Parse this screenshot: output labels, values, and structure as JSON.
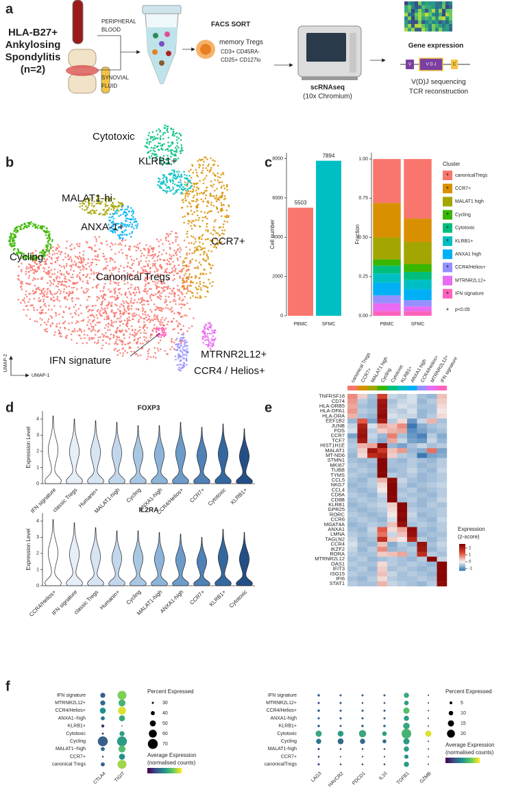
{
  "panels": [
    "a",
    "b",
    "c",
    "d",
    "e",
    "f"
  ],
  "workflow": {
    "cohort": [
      "HLA-B27+",
      "Ankylosing",
      "Spondylitis",
      "(n=2)"
    ],
    "blood": [
      "PERIPHERAL",
      "BLOOD"
    ],
    "fluid": [
      "SYNOVIAL",
      "FLUID"
    ],
    "sort": "FACS SORT",
    "population": "memory Tregs",
    "markers": [
      "CD3+ CD45RA-",
      "CD25+ CD127lo"
    ],
    "method": "scRNAseq",
    "platform": "(10x Chromium)",
    "expression": "Gene expression",
    "vdj": [
      "V(D)J sequencing",
      "TCR reconstruction"
    ],
    "segments": [
      "V",
      "V D J",
      "C"
    ]
  },
  "umap": {
    "xlabel": "UMAP-1",
    "ylabel": "UMAP-2",
    "clusters": [
      {
        "label": "Canonical Tregs",
        "color": "#F8766D"
      },
      {
        "label": "CCR7+",
        "color": "#D89000"
      },
      {
        "label": "MALAT1-hi",
        "color": "#A3A500"
      },
      {
        "label": "Cycling",
        "color": "#39B600"
      },
      {
        "label": "Cytotoxic",
        "color": "#00BF7D"
      },
      {
        "label": "KLRB1+",
        "color": "#00BFC4"
      },
      {
        "label": "ANXA-1+",
        "color": "#00B0F6"
      },
      {
        "label": "CCR4 / Helios+",
        "color": "#9590FF"
      },
      {
        "label": "MTRNR2L12+",
        "color": "#E76BF3"
      },
      {
        "label": "IFN signature",
        "color": "#FF62BC"
      }
    ]
  },
  "chart_data": [
    {
      "type": "bar",
      "ylabel": "Cell number",
      "categories": [
        "PBMC",
        "SFMC"
      ],
      "values": [
        5503,
        7894
      ],
      "colors": [
        "#F8766D",
        "#00BFC4"
      ],
      "ylim": [
        0,
        8300
      ],
      "yticks": [
        0,
        2000,
        4000,
        6000,
        8000
      ]
    },
    {
      "type": "stacked_bar",
      "ylabel": "Fraction",
      "categories": [
        "PBMC",
        "SFMC"
      ],
      "ylim": [
        0,
        1.04
      ],
      "yticks": [
        {
          "value": 0,
          "label": "0.00"
        },
        {
          "value": 0.25,
          "label": "0.25"
        },
        {
          "value": 0.5,
          "label": "0.50"
        },
        {
          "value": 0.75,
          "label": "0.75"
        },
        {
          "value": 1,
          "label": "1.00"
        }
      ],
      "legend_title": "Cluster",
      "significance_mark": "*",
      "significance_note": "p<0.05",
      "series": [
        {
          "name": "canonicalTregs",
          "color": "#F8766D",
          "values": [
            0.28,
            0.38
          ],
          "significant": true
        },
        {
          "name": "CCR7+",
          "color": "#D89000",
          "values": [
            0.22,
            0.15
          ],
          "significant": true
        },
        {
          "name": "MALAT1 high",
          "color": "#A3A500",
          "values": [
            0.14,
            0.14
          ],
          "significant": false
        },
        {
          "name": "Cycling",
          "color": "#39B600",
          "values": [
            0.04,
            0.05
          ],
          "significant": true
        },
        {
          "name": "Cytotoxic",
          "color": "#00BF7D",
          "values": [
            0.05,
            0.05
          ],
          "significant": true
        },
        {
          "name": "KLRB1+",
          "color": "#00BFC4",
          "values": [
            0.06,
            0.06
          ],
          "significant": true
        },
        {
          "name": "ANXA1 high",
          "color": "#00B0F6",
          "values": [
            0.08,
            0.07
          ],
          "significant": false
        },
        {
          "name": "CCR4/Helios+",
          "color": "#9590FF",
          "values": [
            0.05,
            0.04
          ],
          "significant": true
        },
        {
          "name": "MTRNR2L12+",
          "color": "#E76BF3",
          "values": [
            0.05,
            0.03
          ],
          "significant": false
        },
        {
          "name": "IFN signature",
          "color": "#FF62BC",
          "values": [
            0.03,
            0.03
          ],
          "significant": true
        }
      ]
    },
    {
      "type": "violin",
      "title": "FOXP3",
      "ylabel": "Expression Level",
      "ylim": [
        0,
        4.5
      ],
      "yticks": [
        0,
        1,
        2,
        3,
        4
      ],
      "categories": [
        "IFN signature",
        "classic Tregs",
        "Humanin+",
        "MALAT1-high",
        "Cycling",
        "ANXA1-high",
        "CCR4/Helios+",
        "CCR7+",
        "Cytotoxic",
        "KLRB1+"
      ],
      "values": [
        4.2,
        4.0,
        3.9,
        3.8,
        3.6,
        3.6,
        3.8,
        3.5,
        3.7,
        3.4
      ],
      "colors": [
        "#ffffff",
        "#e6eef8",
        "#d6e4f3",
        "#c3d7ec",
        "#a9c7e3",
        "#8db4d8",
        "#6c9bc9",
        "#4f80b6",
        "#35679f",
        "#244f86"
      ]
    },
    {
      "type": "violin",
      "title": "IL2RA",
      "ylabel": "Expression Level",
      "ylim": [
        0,
        4.5
      ],
      "yticks": [
        0,
        1,
        2,
        3,
        4
      ],
      "categories": [
        "CCR4/Helios+",
        "IFN signature",
        "classic Tregs",
        "Humanin+",
        "Cycling",
        "MALAT1-high",
        "ANXA1-high",
        "CCR7+",
        "KLRB1+",
        "Cytotoxic"
      ],
      "values": [
        4.1,
        3.9,
        3.6,
        3.4,
        3.4,
        3.3,
        3.2,
        3.0,
        3.5,
        3.3
      ],
      "colors": [
        "#ffffff",
        "#e6eef8",
        "#d6e4f3",
        "#c3d7ec",
        "#a9c7e3",
        "#8db4d8",
        "#6c9bc9",
        "#4f80b6",
        "#35679f",
        "#244f86"
      ]
    },
    {
      "type": "heatmap",
      "columns": [
        "canonical Tregs",
        "CCR7+",
        "MALAT1 high",
        "Cycling",
        "Cytotoxic",
        "KLRB1+",
        "ANXA1 high",
        "CCR4/Helios+",
        "MTRNR2L12+",
        "IFN signature"
      ],
      "column_colors": [
        "#F8766D",
        "#D89000",
        "#A3A500",
        "#39B600",
        "#00BF7D",
        "#00BFC4",
        "#00B0F6",
        "#9590FF",
        "#E76BF3",
        "#FF62BC"
      ],
      "rows": [
        "TNFRSF18",
        "CD74",
        "HLA-DRB5",
        "HLA-DPA1",
        "HLA-DRA",
        "EEF1B2",
        "JUNB",
        "FOS",
        "CCR7",
        "TCF7",
        "HIST1H1E",
        "MALAT1",
        "MT-ND6",
        "STMN1",
        "MKI67",
        "TUBB",
        "TYMS",
        "CCL5",
        "NKG7",
        "CCL4",
        "CD8A",
        "CD8B",
        "KLRB1",
        "GPR25",
        "RORC",
        "CCR6",
        "MGAT4A",
        "ANXA1",
        "LMNA",
        "TAGLN2",
        "CCR4",
        "IKZF2",
        "RORA",
        "MTRNR2L12",
        "OAS1",
        "IFIT3",
        "ISG15",
        "IFI6",
        "STAT1"
      ],
      "values": [
        [
          0.8,
          0.3,
          -0.5,
          1.5,
          -0.3,
          -0.4,
          -0.2,
          -0.5,
          -0.6,
          0.4
        ],
        [
          0.7,
          -0.4,
          -0.6,
          2.2,
          -0.5,
          -0.3,
          -0.2,
          -0.6,
          -0.4,
          0.3
        ],
        [
          0.6,
          -0.5,
          -0.6,
          2.3,
          -0.4,
          -0.2,
          -0.3,
          -0.5,
          -0.5,
          0.2
        ],
        [
          0.7,
          -0.4,
          -0.5,
          2.3,
          -0.3,
          -0.4,
          -0.2,
          -0.6,
          -0.5,
          0.1
        ],
        [
          0.5,
          -0.5,
          -0.6,
          2.4,
          -0.2,
          -0.3,
          -0.3,
          -0.6,
          -0.4,
          0.2
        ],
        [
          -0.6,
          1.2,
          -0.8,
          2.1,
          -0.4,
          0.2,
          -0.9,
          -0.3,
          0.5,
          -0.5
        ],
        [
          -0.3,
          2.0,
          -0.2,
          0.6,
          0.4,
          0.8,
          -1.2,
          -0.7,
          -0.5,
          -0.4
        ],
        [
          -0.2,
          2.2,
          -0.4,
          0.3,
          0.5,
          0.6,
          -1.0,
          -0.8,
          -0.6,
          -0.5
        ],
        [
          -0.8,
          2.3,
          -0.3,
          -0.6,
          0.9,
          -0.5,
          -0.9,
          -1.1,
          -0.4,
          -0.7
        ],
        [
          -0.5,
          2.1,
          -0.4,
          -0.7,
          0.6,
          -0.3,
          -0.8,
          -0.9,
          -0.3,
          -0.6
        ],
        [
          -0.4,
          0.5,
          0.6,
          2.4,
          -0.6,
          -0.8,
          -0.5,
          -0.3,
          -0.5,
          -0.4
        ],
        [
          -0.5,
          0.3,
          2.2,
          1.6,
          0.4,
          0.7,
          -0.6,
          -0.7,
          1.0,
          -0.8
        ],
        [
          -0.6,
          0.2,
          1.8,
          2.0,
          0.3,
          -0.4,
          -0.5,
          -1.2,
          -0.8,
          -0.7
        ],
        [
          -0.5,
          -0.6,
          -0.5,
          2.5,
          -0.5,
          -0.6,
          -0.4,
          -0.5,
          -0.6,
          -0.4
        ],
        [
          -0.4,
          -0.5,
          -0.6,
          2.5,
          -0.5,
          -0.5,
          -0.4,
          -0.6,
          -0.5,
          -0.4
        ],
        [
          -0.5,
          -0.4,
          -0.5,
          2.5,
          -0.6,
          -0.5,
          -0.3,
          -0.5,
          -0.6,
          -0.3
        ],
        [
          -0.4,
          -0.5,
          -0.6,
          2.5,
          -0.4,
          -0.5,
          -0.4,
          -0.6,
          -0.5,
          -0.4
        ],
        [
          -0.5,
          -0.6,
          -0.4,
          0.5,
          2.4,
          -0.3,
          -0.5,
          -0.6,
          -0.5,
          -0.4
        ],
        [
          -0.6,
          -0.5,
          -0.4,
          0.2,
          2.5,
          -0.4,
          -0.6,
          -0.5,
          -0.4,
          -0.3
        ],
        [
          -0.5,
          -0.6,
          -0.5,
          0.1,
          2.5,
          -0.5,
          -0.4,
          -0.6,
          -0.5,
          -0.4
        ],
        [
          -0.4,
          -0.5,
          -0.6,
          -0.3,
          2.5,
          -0.4,
          -0.5,
          -0.5,
          -0.6,
          -0.4
        ],
        [
          -0.5,
          -0.4,
          -0.5,
          -0.4,
          2.5,
          -0.5,
          -0.4,
          -0.6,
          -0.5,
          -0.3
        ],
        [
          -0.6,
          -0.5,
          -0.4,
          -0.3,
          0.3,
          2.5,
          -0.5,
          -0.6,
          -0.4,
          -0.5
        ],
        [
          -0.5,
          -0.6,
          -0.5,
          -0.4,
          0.2,
          2.5,
          -0.4,
          -0.5,
          -0.5,
          -0.4
        ],
        [
          -0.4,
          -0.5,
          -0.6,
          -0.5,
          0.1,
          2.4,
          -0.3,
          -0.6,
          -0.5,
          -0.4
        ],
        [
          -0.5,
          -0.4,
          -0.5,
          -0.6,
          -0.2,
          2.5,
          -0.4,
          -0.5,
          -0.6,
          -0.3
        ],
        [
          -0.6,
          -0.5,
          -0.4,
          -0.5,
          0.4,
          2.3,
          -0.5,
          -0.4,
          -0.5,
          -0.4
        ],
        [
          -0.5,
          -0.6,
          -0.3,
          1.2,
          0.2,
          0.6,
          2.4,
          -0.5,
          -0.6,
          -0.4
        ],
        [
          -0.4,
          -0.5,
          -0.4,
          1.0,
          -0.3,
          0.4,
          2.3,
          -0.6,
          -0.5,
          -0.5
        ],
        [
          -0.3,
          -0.6,
          -0.5,
          1.8,
          0.3,
          0.1,
          1.9,
          -0.4,
          -0.6,
          -0.4
        ],
        [
          -0.2,
          -0.5,
          -0.6,
          0.4,
          -0.7,
          -0.4,
          -0.6,
          2.3,
          -0.5,
          -0.3
        ],
        [
          -0.3,
          -0.6,
          -0.4,
          0.8,
          -0.6,
          -0.5,
          -0.4,
          2.2,
          -0.6,
          -0.4
        ],
        [
          -0.4,
          -0.5,
          -0.5,
          0.3,
          0.4,
          0.6,
          -0.5,
          1.8,
          -0.4,
          -0.5
        ],
        [
          -0.5,
          -0.4,
          -0.6,
          -0.5,
          -0.4,
          -0.5,
          -0.6,
          -0.4,
          2.5,
          -0.3
        ],
        [
          -0.4,
          -0.5,
          -0.5,
          0.2,
          -0.4,
          -0.5,
          -0.4,
          -0.5,
          -0.6,
          2.5
        ],
        [
          -0.5,
          -0.4,
          -0.6,
          0.3,
          -0.5,
          -0.4,
          -0.5,
          -0.6,
          -0.5,
          2.5
        ],
        [
          -0.4,
          -0.5,
          -0.5,
          0.4,
          -0.3,
          -0.5,
          -0.4,
          -0.5,
          -0.6,
          2.5
        ],
        [
          -0.5,
          -0.6,
          -0.4,
          0.2,
          -0.4,
          -0.5,
          -0.5,
          -0.4,
          -0.5,
          2.5
        ],
        [
          -0.4,
          -0.5,
          -0.5,
          0.5,
          -0.3,
          -0.4,
          -0.5,
          -0.6,
          -0.4,
          2.4
        ]
      ],
      "legend_title": [
        "Expression",
        "(z-score)"
      ],
      "color_lim": [
        -1.3,
        2.6
      ],
      "color_ticks": [
        2,
        1,
        0,
        -1
      ]
    },
    {
      "type": "dot",
      "categories": [
        "IFN signature",
        "MTRNR2L12+",
        "CCR4/Helios+",
        "ANXA1−high",
        "KLRB1+",
        "Cytotoxic",
        "Cycling",
        "MALAT1−high",
        "CCR7+",
        "canonical Tregs"
      ],
      "series": [
        {
          "name": "CTLA4",
          "values": [
            45,
            45,
            50,
            40,
            35,
            30,
            70,
            40,
            28,
            40
          ],
          "color_values": [
            0.3,
            0.35,
            0.5,
            0.4,
            0.15,
            0.2,
            0.3,
            0.35,
            0.1,
            0.3
          ]
        },
        {
          "name": "TIGIT",
          "values": [
            65,
            55,
            60,
            50,
            25,
            45,
            70,
            55,
            50,
            65
          ],
          "color_values": [
            0.8,
            0.65,
            0.95,
            0.6,
            0.1,
            0.55,
            0.55,
            0.7,
            0.5,
            0.85
          ]
        }
      ],
      "size_title": "Percent Expressed",
      "size_ticks": [
        30,
        40,
        50,
        60,
        70
      ],
      "size_lim": [
        25,
        72
      ],
      "color_title": [
        "Average Expression",
        "(normalised counts)"
      ],
      "color_lim": [
        0,
        1
      ]
    },
    {
      "type": "dot",
      "categories": [
        "IFN signature",
        "MTRNR2L12+",
        "CCR4/Helios+",
        "ANXA1-high",
        "KLRB1+",
        "Cytotoxic",
        "Cycling",
        "MALAT1-high",
        "CCR7+",
        "canonicalTregs"
      ],
      "series": [
        {
          "name": "LAG3",
          "values": [
            4,
            3,
            4,
            3,
            4,
            15,
            12,
            3,
            2,
            3
          ],
          "color_values": [
            0.3,
            0.25,
            0.3,
            0.3,
            0.3,
            0.6,
            0.4,
            0.2,
            0.15,
            0.2
          ]
        },
        {
          "name": "HAVCR2",
          "values": [
            3,
            3,
            3,
            3,
            3,
            14,
            14,
            2,
            1,
            2
          ],
          "color_values": [
            0.3,
            0.3,
            0.3,
            0.3,
            0.3,
            0.55,
            0.35,
            0.2,
            0.15,
            0.2
          ]
        },
        {
          "name": "PDCD1",
          "values": [
            3,
            2,
            3,
            3,
            4,
            18,
            12,
            2,
            1,
            2
          ],
          "color_values": [
            0.3,
            0.25,
            0.3,
            0.3,
            0.35,
            0.6,
            0.35,
            0.2,
            0.1,
            0.2
          ]
        },
        {
          "name": "IL10",
          "values": [
            3,
            2,
            3,
            3,
            4,
            10,
            8,
            2,
            1,
            2
          ],
          "color_values": [
            0.3,
            0.25,
            0.3,
            0.3,
            0.35,
            0.55,
            0.35,
            0.2,
            0.1,
            0.2
          ]
        },
        {
          "name": "TGFB1",
          "values": [
            12,
            10,
            15,
            12,
            16,
            25,
            15,
            12,
            9,
            12
          ],
          "color_values": [
            0.6,
            0.55,
            0.7,
            0.55,
            0.6,
            0.65,
            0.55,
            0.55,
            0.5,
            0.55
          ]
        },
        {
          "name": "GZMB",
          "values": [
            1,
            1,
            1,
            1,
            1,
            15,
            1,
            1,
            0.5,
            1
          ],
          "color_values": [
            0.2,
            0.2,
            0.2,
            0.2,
            0.2,
            0.95,
            0.2,
            0.2,
            0.15,
            0.2
          ]
        }
      ],
      "size_title": "Percent Expressed",
      "size_ticks": [
        5,
        10,
        15,
        20
      ],
      "size_lim": [
        0,
        25
      ],
      "color_title": [
        "Average Expression",
        "(normalised counts)"
      ],
      "color_lim": [
        0,
        1
      ]
    }
  ]
}
